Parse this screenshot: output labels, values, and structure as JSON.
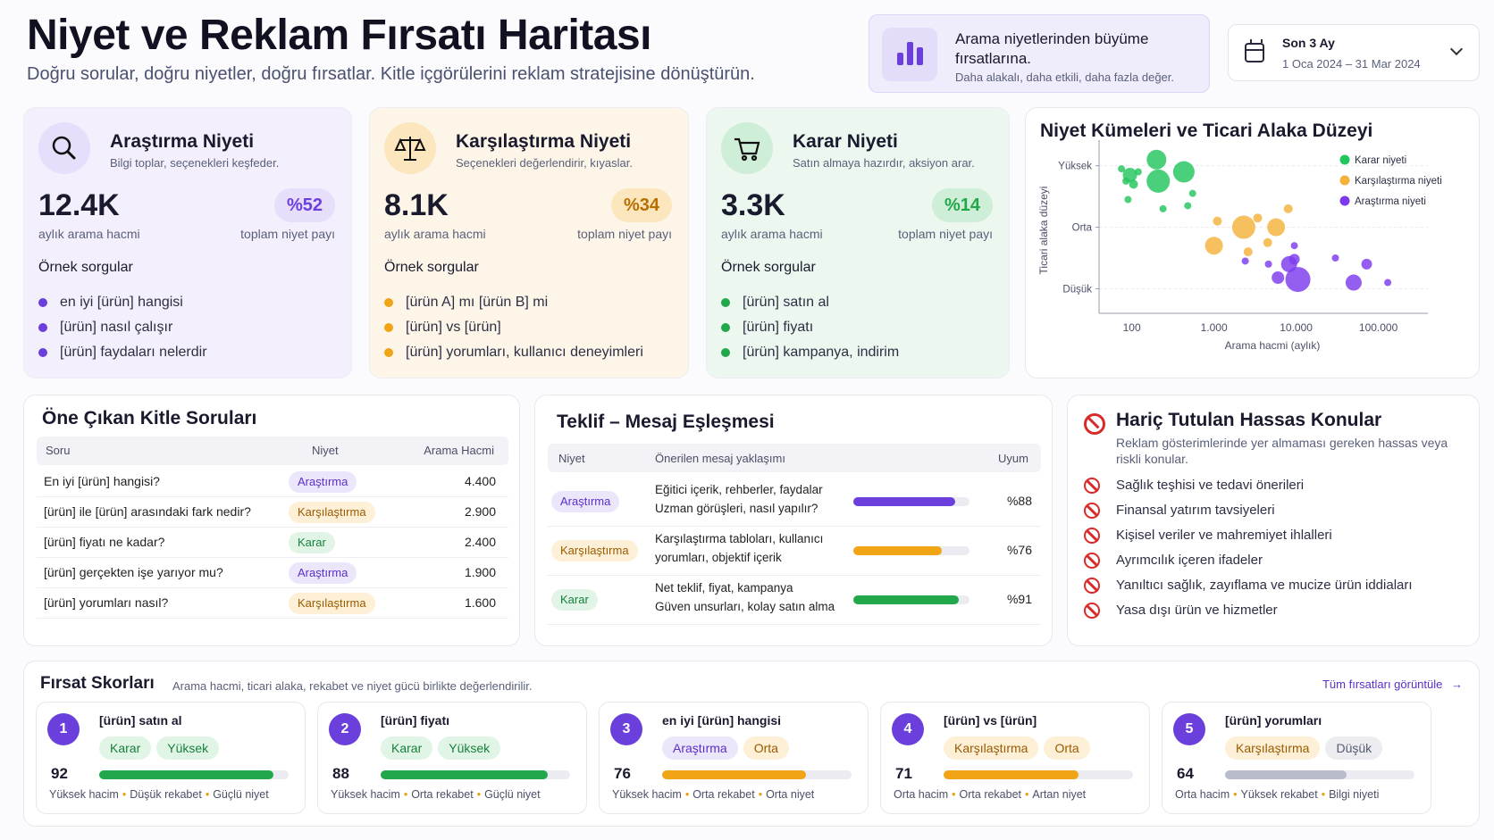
{
  "header": {
    "title": "Niyet ve Reklam Fırsatı Haritası",
    "subtitle": "Doğru sorular, doğru niyetler, doğru fırsatlar. Kitle içgörülerini reklam stratejisine dönüştürün.",
    "promo_title": "Arama niyetlerinden büyüme fırsatlarına.",
    "promo_sub": "Daha alakalı, daha etkili, daha fazla değer.",
    "date_label": "Son 3 Ay",
    "date_range": "1 Oca 2024 – 31 Mar 2024"
  },
  "intents": [
    {
      "title": "Araştırma Niyeti",
      "desc": "Bilgi toplar, seçenekleri keşfeder.",
      "volume": "12.4K",
      "volume_label": "aylık arama hacmi",
      "share": "%52",
      "share_label": "toplam niyet payı",
      "examples_label": "Örnek sorgular",
      "examples": [
        "en iyi [ürün] hangisi",
        "[ürün] nasıl çalışır",
        "[ürün] faydaları nelerdir"
      ],
      "color": "#6a3fdc",
      "bg": "#f3effc",
      "icon": "search-icon"
    },
    {
      "title": "Karşılaştırma Niyeti",
      "desc": "Seçenekleri değerlendirir, kıyaslar.",
      "volume": "8.1K",
      "volume_label": "aylık arama hacmi",
      "share": "%34",
      "share_label": "toplam niyet payı",
      "examples_label": "Örnek sorgular",
      "examples": [
        "[ürün A] mı [ürün B] mi",
        "[ürün] vs [ürün]",
        "[ürün] yorumları, kullanıcı deneyimleri"
      ],
      "color": "#f0a416",
      "bg": "#fdf6e8",
      "icon": "scale-icon"
    },
    {
      "title": "Karar Niyeti",
      "desc": "Satın almaya hazırdır, aksiyon arar.",
      "volume": "3.3K",
      "volume_label": "aylık arama hacmi",
      "share": "%14",
      "share_label": "toplam niyet payı",
      "examples_label": "Örnek sorgular",
      "examples": [
        "[ürün] satın al",
        "[ürün] fiyatı",
        "[ürün] kampanya, indirim"
      ],
      "color": "#22a84a",
      "bg": "#ecf8ef",
      "icon": "cart-icon"
    }
  ],
  "scatter": {
    "title": "Niyet Kümeleri ve Ticari Alaka Düzeyi",
    "ylabel": "Ticari alaka düzeyi",
    "xlabel": "Arama hacmi (aylık)",
    "y_ticks": [
      "Yüksek",
      "Orta",
      "Düşük"
    ],
    "x_ticks": [
      "100",
      "1.000",
      "10.000",
      "100.000"
    ],
    "legend": [
      "Karar niyeti",
      "Karşılaştırma niyeti",
      "Araştırma niyeti"
    ]
  },
  "chart_data": {
    "type": "scatter",
    "title": "Niyet Kümeleri ve Ticari Alaka Düzeyi",
    "xlabel": "Arama hacmi (aylık)",
    "ylabel": "Ticari alaka düzeyi",
    "x_scale": "log",
    "xlim": [
      40,
      400000
    ],
    "ylim": [
      0.6,
      3.3
    ],
    "y_categories": [
      "Düşük",
      "Orta",
      "Yüksek"
    ],
    "legend_position": "top-right",
    "series": [
      {
        "name": "Karar niyeti",
        "color": "#22c55e",
        "points": [
          {
            "x": 75,
            "y": 2.95,
            "r": 4
          },
          {
            "x": 85,
            "y": 2.75,
            "r": 4
          },
          {
            "x": 95,
            "y": 2.85,
            "r": 8
          },
          {
            "x": 105,
            "y": 2.7,
            "r": 5
          },
          {
            "x": 120,
            "y": 2.9,
            "r": 4
          },
          {
            "x": 90,
            "y": 2.45,
            "r": 4
          },
          {
            "x": 200,
            "y": 3.1,
            "r": 11
          },
          {
            "x": 210,
            "y": 2.75,
            "r": 13
          },
          {
            "x": 430,
            "y": 2.9,
            "r": 12
          },
          {
            "x": 240,
            "y": 2.3,
            "r": 4
          },
          {
            "x": 480,
            "y": 2.35,
            "r": 4
          },
          {
            "x": 550,
            "y": 2.55,
            "r": 4
          }
        ]
      },
      {
        "name": "Karşılaştırma niyeti",
        "color": "#f5b23a",
        "points": [
          {
            "x": 1100,
            "y": 2.1,
            "r": 5
          },
          {
            "x": 2300,
            "y": 2.0,
            "r": 13
          },
          {
            "x": 3400,
            "y": 2.15,
            "r": 5
          },
          {
            "x": 5700,
            "y": 2.0,
            "r": 10
          },
          {
            "x": 8000,
            "y": 2.3,
            "r": 5
          },
          {
            "x": 1000,
            "y": 1.7,
            "r": 10
          },
          {
            "x": 2600,
            "y": 1.6,
            "r": 5
          },
          {
            "x": 4500,
            "y": 1.75,
            "r": 5
          }
        ]
      },
      {
        "name": "Araştırma niyeti",
        "color": "#7c3aed",
        "points": [
          {
            "x": 2400,
            "y": 1.45,
            "r": 4
          },
          {
            "x": 4600,
            "y": 1.4,
            "r": 4
          },
          {
            "x": 9500,
            "y": 1.7,
            "r": 4
          },
          {
            "x": 8200,
            "y": 1.4,
            "r": 9
          },
          {
            "x": 9500,
            "y": 1.48,
            "r": 6
          },
          {
            "x": 6000,
            "y": 1.18,
            "r": 7
          },
          {
            "x": 10500,
            "y": 1.15,
            "r": 14
          },
          {
            "x": 30000,
            "y": 1.5,
            "r": 4
          },
          {
            "x": 72000,
            "y": 1.4,
            "r": 6
          },
          {
            "x": 50000,
            "y": 1.1,
            "r": 9
          },
          {
            "x": 130000,
            "y": 1.1,
            "r": 4
          }
        ]
      }
    ]
  },
  "questions": {
    "title": "Öne Çıkan Kitle Soruları",
    "columns": [
      "Soru",
      "Niyet",
      "Arama Hacmi"
    ],
    "rows": [
      {
        "q": "En iyi [ürün] hangisi?",
        "intent": "Araştırma",
        "cls": "p-ar",
        "vol": "4.400"
      },
      {
        "q": "[ürün] ile [ürün] arasındaki fark nedir?",
        "intent": "Karşılaştırma",
        "cls": "p-ka",
        "vol": "2.900"
      },
      {
        "q": "[ürün] fiyatı ne kadar?",
        "intent": "Karar",
        "cls": "p-kr",
        "vol": "2.400"
      },
      {
        "q": "[ürün] gerçekten işe yarıyor mu?",
        "intent": "Araştırma",
        "cls": "p-ar",
        "vol": "1.900"
      },
      {
        "q": "[ürün] yorumları nasıl?",
        "intent": "Karşılaştırma",
        "cls": "p-ka",
        "vol": "1.600"
      }
    ]
  },
  "offer": {
    "title": "Teklif – Mesaj Eşleşmesi",
    "columns": [
      "Niyet",
      "Önerilen mesaj yaklaşımı",
      "Uyum"
    ],
    "rows": [
      {
        "intent": "Araştırma",
        "cls": "p-ar",
        "line1": "Eğitici içerik, rehberler, faydalar",
        "line2": "Uzman görüşleri, nasıl yapılır?",
        "fit": 88,
        "fit_label": "%88",
        "color": "#6a3fdc"
      },
      {
        "intent": "Karşılaştırma",
        "cls": "p-ka",
        "line1": "Karşılaştırma tabloları, kullanıcı",
        "line2": "yorumları, objektif içerik",
        "fit": 76,
        "fit_label": "%76",
        "color": "#f0a416"
      },
      {
        "intent": "Karar",
        "cls": "p-kr",
        "line1": "Net teklif, fiyat, kampanya",
        "line2": "Güven unsurları, kolay satın alma",
        "fit": 91,
        "fit_label": "%91",
        "color": "#22a84a"
      }
    ]
  },
  "excluded": {
    "title": "Hariç Tutulan Hassas Konular",
    "desc": "Reklam gösterimlerinde yer almaması gereken hassas veya riskli konular.",
    "items": [
      "Sağlık teşhisi ve tedavi önerileri",
      "Finansal yatırım tavsiyeleri",
      "Kişisel veriler ve mahremiyet ihlalleri",
      "Ayrımcılık içeren ifadeler",
      "Yanıltıcı sağlık, zayıflama ve mucize ürün iddiaları",
      "Yasa dışı ürün ve hizmetler"
    ]
  },
  "opportunity": {
    "title": "Fırsat Skorları",
    "desc": "Arama hacmi, ticari alaka, rekabet ve niyet gücü birlikte değerlendirilir.",
    "link": "Tüm fırsatları görüntüle",
    "cards": [
      {
        "rank": "1",
        "query": "[ürün] satın al",
        "intent": "Karar",
        "intent_cls": "p-kr",
        "level": "Yüksek",
        "level_cls": "p-kr",
        "score": 92,
        "color": "#22a84a",
        "m1": "Yüksek hacim",
        "m2": "Düşük rekabet",
        "m3": "Güçlü niyet"
      },
      {
        "rank": "2",
        "query": "[ürün] fiyatı",
        "intent": "Karar",
        "intent_cls": "p-kr",
        "level": "Yüksek",
        "level_cls": "p-kr",
        "score": 88,
        "color": "#22a84a",
        "m1": "Yüksek hacim",
        "m2": "Orta rekabet",
        "m3": "Güçlü niyet"
      },
      {
        "rank": "3",
        "query": "en iyi [ürün] hangisi",
        "intent": "Araştırma",
        "intent_cls": "p-ar",
        "level": "Orta",
        "level_cls": "p-ka",
        "score": 76,
        "color": "#f0a416",
        "m1": "Yüksek hacim",
        "m2": "Orta rekabet",
        "m3": "Orta niyet"
      },
      {
        "rank": "4",
        "query": "[ürün] vs [ürün]",
        "intent": "Karşılaştırma",
        "intent_cls": "p-ka",
        "level": "Orta",
        "level_cls": "p-ka",
        "score": 71,
        "color": "#f0a416",
        "m1": "Orta hacim",
        "m2": "Orta rekabet",
        "m3": "Artan niyet"
      },
      {
        "rank": "5",
        "query": "[ürün] yorumları",
        "intent": "Karşılaştırma",
        "intent_cls": "p-ka",
        "level": "Düşük",
        "level_cls": "p-gr",
        "score": 64,
        "color": "#b9bccb",
        "m1": "Orta hacim",
        "m2": "Yüksek rekabet",
        "m3": "Bilgi niyeti"
      }
    ]
  }
}
